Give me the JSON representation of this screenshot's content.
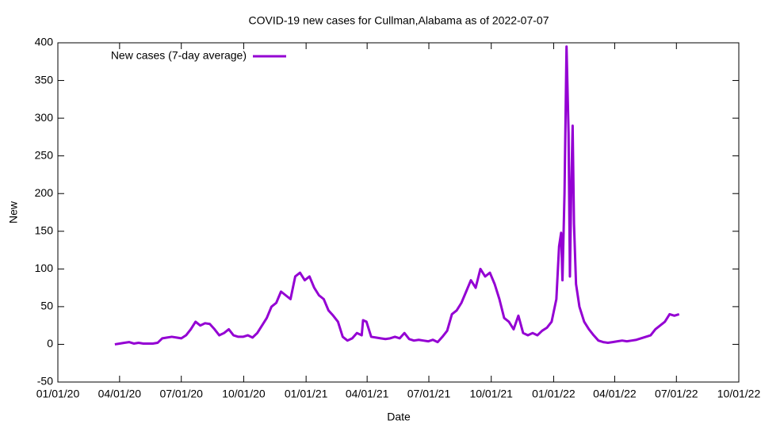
{
  "chart_data": {
    "type": "line",
    "title": "COVID-19 new cases for Cullman,Alabama as of 2022-07-07",
    "x_label": "Date",
    "y_label": "New",
    "xlim": [
      "2020-01-01",
      "2022-10-01"
    ],
    "xticks": [
      {
        "value": "2020-01-01",
        "label": "01/01/20"
      },
      {
        "value": "2020-04-01",
        "label": "04/01/20"
      },
      {
        "value": "2020-07-01",
        "label": "07/01/20"
      },
      {
        "value": "2020-10-01",
        "label": "10/01/20"
      },
      {
        "value": "2021-01-01",
        "label": "01/01/21"
      },
      {
        "value": "2021-04-01",
        "label": "04/01/21"
      },
      {
        "value": "2021-07-01",
        "label": "07/01/21"
      },
      {
        "value": "2021-10-01",
        "label": "10/01/21"
      },
      {
        "value": "2022-01-01",
        "label": "01/01/22"
      },
      {
        "value": "2022-04-01",
        "label": "04/01/22"
      },
      {
        "value": "2022-07-01",
        "label": "07/01/22"
      },
      {
        "value": "2022-10-01",
        "label": "10/01/22"
      }
    ],
    "ylim": [
      -50,
      400
    ],
    "yticks": [
      -50,
      0,
      50,
      100,
      150,
      200,
      250,
      300,
      350,
      400
    ],
    "legend": "top-left",
    "x": [
      "2020-03-25",
      "2020-04-01",
      "2020-04-08",
      "2020-04-15",
      "2020-04-22",
      "2020-04-29",
      "2020-05-06",
      "2020-05-13",
      "2020-05-20",
      "2020-05-27",
      "2020-06-03",
      "2020-06-10",
      "2020-06-17",
      "2020-06-24",
      "2020-07-01",
      "2020-07-08",
      "2020-07-15",
      "2020-07-22",
      "2020-07-29",
      "2020-08-05",
      "2020-08-12",
      "2020-08-19",
      "2020-08-26",
      "2020-09-02",
      "2020-09-09",
      "2020-09-16",
      "2020-09-23",
      "2020-09-30",
      "2020-10-07",
      "2020-10-14",
      "2020-10-21",
      "2020-10-28",
      "2020-11-04",
      "2020-11-11",
      "2020-11-18",
      "2020-11-25",
      "2020-12-02",
      "2020-12-09",
      "2020-12-16",
      "2020-12-23",
      "2020-12-30",
      "2021-01-06",
      "2021-01-13",
      "2021-01-20",
      "2021-01-27",
      "2021-02-03",
      "2021-02-10",
      "2021-02-17",
      "2021-02-24",
      "2021-03-03",
      "2021-03-10",
      "2021-03-17",
      "2021-03-24",
      "2021-03-26",
      "2021-03-31",
      "2021-04-07",
      "2021-04-14",
      "2021-04-21",
      "2021-04-28",
      "2021-05-05",
      "2021-05-12",
      "2021-05-19",
      "2021-05-26",
      "2021-06-02",
      "2021-06-09",
      "2021-06-16",
      "2021-06-23",
      "2021-06-30",
      "2021-07-07",
      "2021-07-14",
      "2021-07-21",
      "2021-07-28",
      "2021-08-04",
      "2021-08-11",
      "2021-08-18",
      "2021-08-25",
      "2021-09-01",
      "2021-09-08",
      "2021-09-15",
      "2021-09-22",
      "2021-09-29",
      "2021-10-06",
      "2021-10-13",
      "2021-10-20",
      "2021-10-27",
      "2021-11-03",
      "2021-11-10",
      "2021-11-17",
      "2021-11-24",
      "2021-12-01",
      "2021-12-08",
      "2021-12-15",
      "2021-12-22",
      "2021-12-29",
      "2022-01-05",
      "2022-01-09",
      "2022-01-12",
      "2022-01-14",
      "2022-01-17",
      "2022-01-20",
      "2022-01-23",
      "2022-01-25",
      "2022-01-27",
      "2022-01-29",
      "2022-01-31",
      "2022-02-03",
      "2022-02-08",
      "2022-02-15",
      "2022-02-22",
      "2022-03-01",
      "2022-03-08",
      "2022-03-15",
      "2022-03-22",
      "2022-03-29",
      "2022-04-05",
      "2022-04-12",
      "2022-04-19",
      "2022-04-26",
      "2022-05-03",
      "2022-05-10",
      "2022-05-17",
      "2022-05-24",
      "2022-05-31",
      "2022-06-07",
      "2022-06-14",
      "2022-06-21",
      "2022-06-28",
      "2022-07-05"
    ],
    "series": [
      {
        "name": "New cases (7-day average)",
        "color": "#9400d3",
        "values": [
          0,
          1,
          2,
          3,
          1,
          2,
          1,
          1,
          1,
          2,
          8,
          9,
          10,
          9,
          8,
          12,
          20,
          30,
          25,
          28,
          27,
          20,
          12,
          15,
          20,
          12,
          10,
          10,
          12,
          9,
          15,
          25,
          35,
          50,
          55,
          70,
          65,
          60,
          90,
          95,
          85,
          90,
          75,
          65,
          60,
          45,
          38,
          30,
          10,
          5,
          8,
          15,
          12,
          32,
          30,
          10,
          9,
          8,
          7,
          8,
          10,
          8,
          15,
          7,
          5,
          6,
          5,
          4,
          6,
          3,
          10,
          18,
          40,
          45,
          55,
          70,
          85,
          75,
          100,
          90,
          95,
          80,
          60,
          35,
          30,
          20,
          38,
          15,
          12,
          15,
          12,
          18,
          22,
          30,
          60,
          130,
          148,
          85,
          200,
          395,
          280,
          90,
          210,
          290,
          160,
          80,
          50,
          30,
          20,
          12,
          5,
          3,
          2,
          3,
          4,
          5,
          4,
          5,
          6,
          8,
          10,
          12,
          20,
          25,
          30,
          40,
          38,
          40
        ]
      }
    ]
  }
}
